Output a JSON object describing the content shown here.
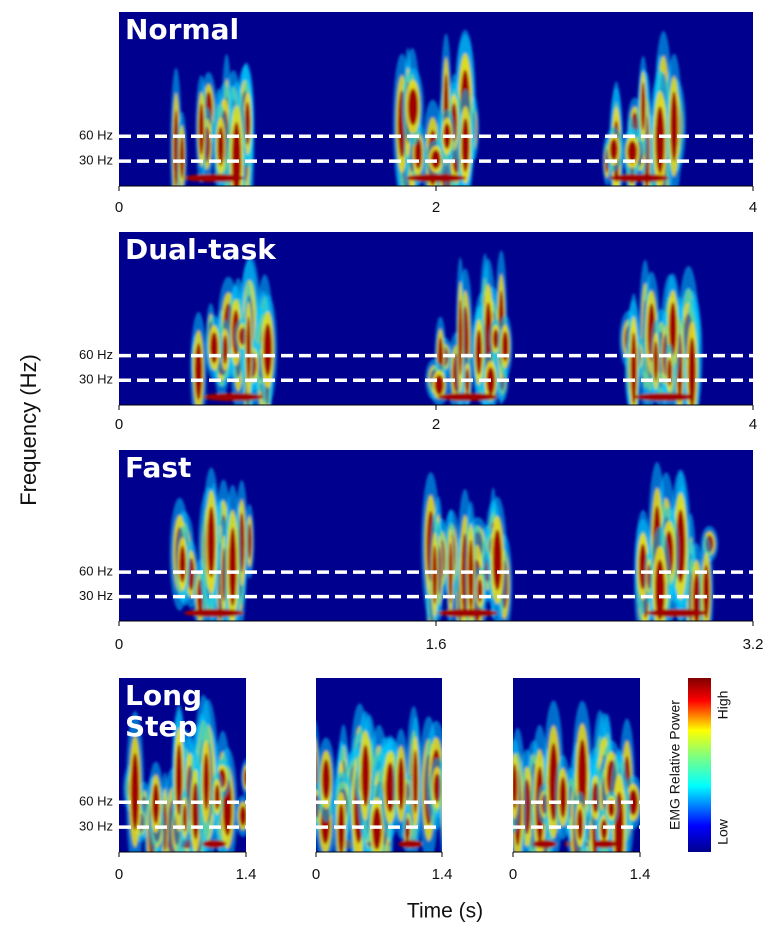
{
  "y_label": "Frequency (Hz)",
  "x_label": "Time (s)",
  "panels": [
    {
      "title": "Normal",
      "ylim": [
        0,
        210
      ],
      "xlim": [
        0,
        4
      ],
      "xticks": [
        0,
        2,
        4
      ],
      "hlines": [
        {
          "value": 60,
          "label": "60 Hz"
        },
        {
          "value": 30,
          "label": "30 Hz"
        }
      ]
    },
    {
      "title": "Dual-task",
      "ylim": [
        0,
        210
      ],
      "xlim": [
        0,
        4
      ],
      "xticks": [
        0,
        2,
        4
      ],
      "hlines": [
        {
          "value": 60,
          "label": "60 Hz"
        },
        {
          "value": 30,
          "label": "30 Hz"
        }
      ]
    },
    {
      "title": "Fast",
      "ylim": [
        0,
        210
      ],
      "xlim": [
        0,
        3.2
      ],
      "xticks": [
        0,
        1.6,
        3.2
      ],
      "hlines": [
        {
          "value": 60,
          "label": "60 Hz"
        },
        {
          "value": 30,
          "label": "30 Hz"
        }
      ]
    },
    {
      "title": "Long Step",
      "ylim": [
        0,
        210
      ],
      "xlim": [
        0,
        1.4
      ],
      "xticks": [
        0,
        1.4
      ],
      "hlines": [
        {
          "value": 60,
          "label": "60 Hz"
        },
        {
          "value": 30,
          "label": "30 Hz"
        }
      ]
    },
    {
      "ylim": [
        0,
        210
      ],
      "xlim": [
        0,
        1.4
      ],
      "xticks": [
        0,
        1.4
      ],
      "hlines": [
        60,
        30
      ]
    },
    {
      "ylim": [
        0,
        210
      ],
      "xlim": [
        0,
        1.4
      ],
      "xticks": [
        0,
        1.4
      ],
      "hlines": [
        60,
        30
      ]
    }
  ],
  "colorbar": {
    "title": "EMG Relative Power",
    "high": "High",
    "low": "Low"
  }
}
